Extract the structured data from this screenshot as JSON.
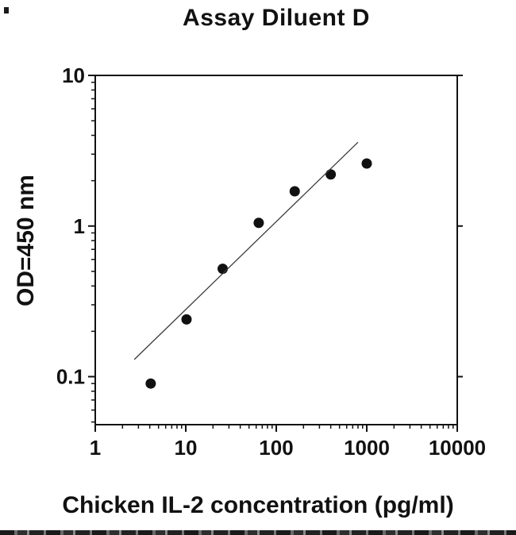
{
  "chart_data": {
    "type": "scatter",
    "title": "Assay Diluent D",
    "xlabel": "Chicken IL-2 concentration (pg/ml)",
    "ylabel": "OD=450 nm",
    "xscale": "log",
    "yscale": "log",
    "xlim": [
      1,
      10000
    ],
    "ylim": [
      0.048,
      10
    ],
    "x_ticks": [
      1,
      10,
      100,
      1000,
      10000
    ],
    "x_tick_labels": [
      "1",
      "10",
      "100",
      "1000",
      "10000"
    ],
    "y_ticks": [
      0.1,
      1,
      10
    ],
    "y_tick_labels": [
      "0.1",
      "1",
      "10"
    ],
    "grid": false,
    "legend": null,
    "marker_radius": 6.5,
    "colors": {
      "frame": "#111111",
      "text": "#111111",
      "marker": "#111111",
      "fit_line": "#3a3a3a",
      "background": "#ffffff"
    },
    "series": [
      {
        "name": "standard-curve-points",
        "type": "scatter",
        "marker": "filled-circle",
        "points": [
          [
            4.1,
            0.09
          ],
          [
            10.2,
            0.24
          ],
          [
            25.6,
            0.52
          ],
          [
            64,
            1.05
          ],
          [
            160,
            1.7
          ],
          [
            400,
            2.2
          ],
          [
            1000,
            2.6
          ]
        ]
      },
      {
        "name": "fit-line",
        "type": "line",
        "points": [
          [
            2.7,
            0.13
          ],
          [
            800,
            3.6
          ]
        ]
      }
    ]
  }
}
